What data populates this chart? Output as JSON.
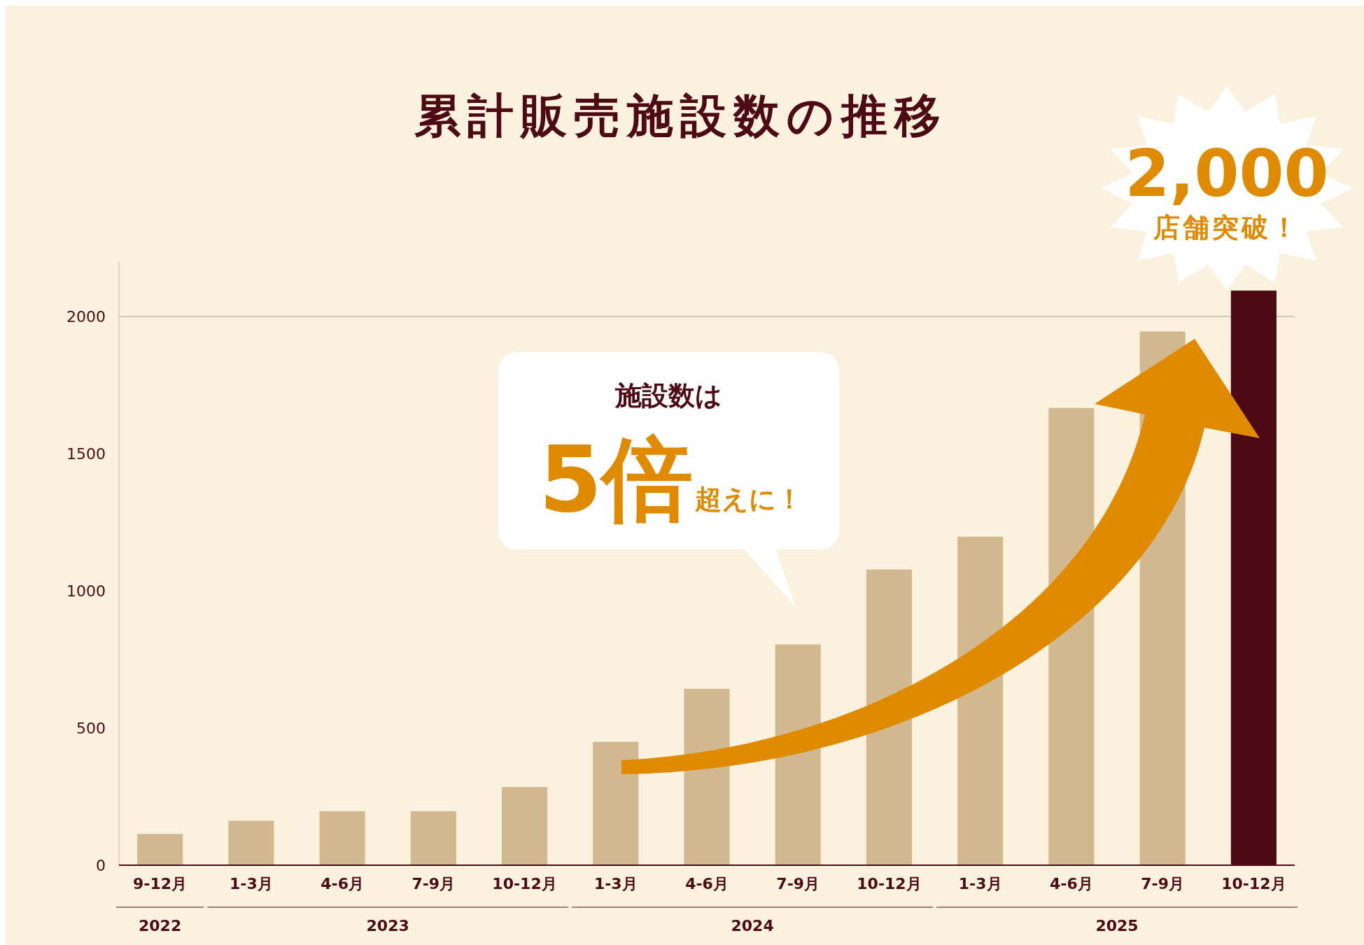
{
  "chart_data": {
    "type": "bar",
    "title": "累計販売施設数の推移",
    "categories": [
      "9-12月",
      "1-3月",
      "4-6月",
      "7-9月",
      "10-12月",
      "1-3月",
      "4-6月",
      "7-9月",
      "10-12月",
      "1-3月",
      "4-6月",
      "7-9月",
      "10-12月"
    ],
    "values": [
      114,
      162,
      197,
      197,
      285,
      450,
      643,
      805,
      1078,
      1198,
      1667,
      1946,
      2095
    ],
    "colors": [
      "#d2b88e",
      "#d2b88e",
      "#d2b88e",
      "#d2b88e",
      "#d2b88e",
      "#d2b88e",
      "#d2b88e",
      "#d2b88e",
      "#d2b88e",
      "#d2b88e",
      "#d2b88e",
      "#d2b88e",
      "#4e0a14"
    ],
    "ylim": [
      0,
      2200
    ],
    "yticks": [
      0,
      500,
      1000,
      1500,
      2000
    ],
    "grid": false,
    "ref_lines": [
      {
        "axis": "y",
        "value": 2000,
        "color": "#c9b8a6"
      }
    ],
    "annotations": [
      "施設数は",
      "5倍",
      "超えに！",
      "2,000",
      "店舗突破！",
      "2022",
      "2023",
      "2024",
      "2025"
    ]
  }
}
